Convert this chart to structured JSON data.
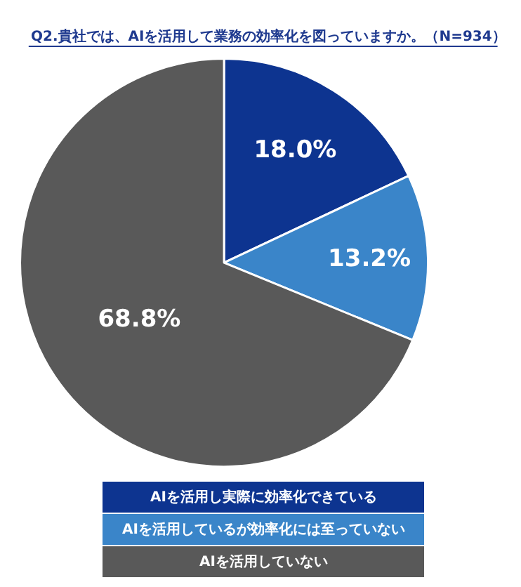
{
  "chart_data": {
    "type": "pie",
    "title": "Q2.貴社では、AIを活用して業務の効率化を図っていますか。（N=934）",
    "categories": [
      "AIを活用し実際に効率化できている",
      "AIを活用しているが効率化には至っていない",
      "AIを活用していない"
    ],
    "values": [
      18.0,
      13.2,
      68.8
    ],
    "value_labels": [
      "18.0%",
      "13.2%",
      "68.8%"
    ],
    "colors": [
      "#0d3490",
      "#3a85c9",
      "#595959"
    ],
    "legend": "bottom"
  }
}
